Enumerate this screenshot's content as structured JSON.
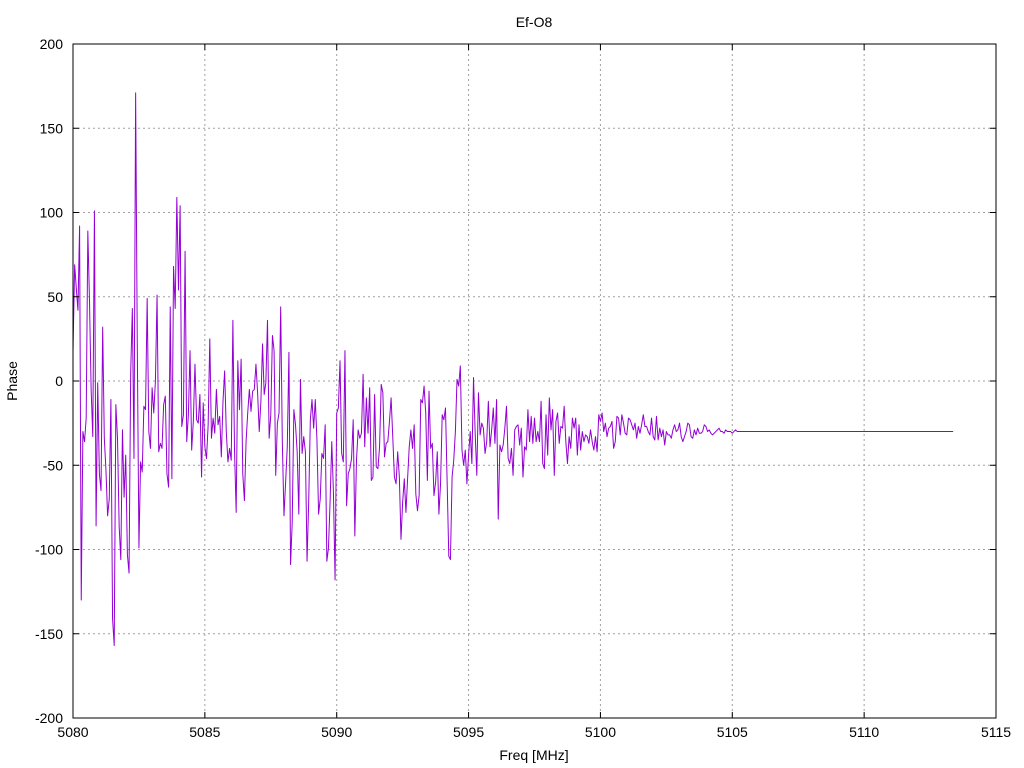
{
  "chart_data": {
    "type": "line",
    "title": "Ef-O8",
    "xlabel": "Freq [MHz]",
    "ylabel": "Phase",
    "xlim": [
      5080,
      5115
    ],
    "ylim": [
      -200,
      200
    ],
    "xticks": [
      5080,
      5085,
      5090,
      5095,
      5100,
      5105,
      5110,
      5115
    ],
    "yticks": [
      -200,
      -150,
      -100,
      -50,
      0,
      50,
      100,
      150,
      200
    ],
    "grid": true,
    "legend": "none",
    "series": [
      {
        "color": "#9400d3",
        "x_start": 5080.0,
        "x_end": 5112.0,
        "x_step": 0.0625,
        "values": [
          17,
          69,
          55,
          42,
          92,
          -130,
          -30,
          -36,
          -22,
          89,
          48,
          -5,
          -33,
          101,
          -86,
          -1,
          -55,
          -65,
          32,
          -34,
          -53,
          -80,
          -70,
          -11,
          -141,
          -157,
          -14,
          -34,
          -86,
          -106,
          -29,
          -69,
          -44,
          -103,
          -114,
          5,
          43,
          -46,
          171,
          22,
          -99,
          -48,
          -54,
          -15,
          -17,
          49,
          -30,
          -40,
          -4,
          -19,
          0,
          51,
          -42,
          -37,
          -40,
          -14,
          -9,
          -55,
          -63,
          44,
          -58,
          68,
          43,
          109,
          54,
          104,
          -27,
          -20,
          77,
          -36,
          -20,
          18,
          -41,
          -24,
          10,
          -23,
          -25,
          -8,
          -57,
          -13,
          -39,
          -46,
          -26,
          25,
          -34,
          -22,
          -31,
          -5,
          -26,
          -21,
          -45,
          -12,
          6,
          -30,
          -48,
          -40,
          -47,
          36,
          -41,
          -78,
          12,
          -17,
          13,
          -55,
          -71,
          -36,
          -19,
          -5,
          -18,
          -6,
          -5,
          10,
          -7,
          -30,
          -12,
          22,
          -8,
          -1,
          36,
          -34,
          -20,
          27,
          18,
          -56,
          -25,
          -19,
          44,
          -36,
          -80,
          -60,
          -39,
          17,
          -109,
          -84,
          -17,
          -26,
          -42,
          -79,
          1,
          -43,
          -33,
          -42,
          -107,
          -72,
          -23,
          -11,
          -28,
          -11,
          -35,
          -79,
          -70,
          -43,
          -46,
          -26,
          -107,
          -99,
          -71,
          -36,
          -66,
          -118,
          -19,
          -16,
          12,
          -43,
          -48,
          18,
          -74,
          -55,
          -52,
          -46,
          -23,
          -92,
          -47,
          -29,
          -34,
          -31,
          4,
          -39,
          -10,
          -31,
          -4,
          -59,
          -57,
          -8,
          -51,
          -52,
          -39,
          -2,
          -7,
          -45,
          -37,
          -36,
          -24,
          -10,
          -33,
          -57,
          -61,
          -42,
          -57,
          -94,
          -72,
          -58,
          -78,
          -58,
          -39,
          -29,
          -40,
          -26,
          -67,
          -77,
          -68,
          -11,
          -13,
          -3,
          -19,
          -59,
          -6,
          -40,
          -37,
          -68,
          -60,
          -42,
          -79,
          -61,
          -20,
          -23,
          -16,
          -60,
          -104,
          -106,
          -57,
          -47,
          -30,
          1,
          -3,
          9,
          -41,
          -50,
          -41,
          -61,
          -44,
          -30,
          -49,
          2,
          -31,
          -56,
          -7,
          -32,
          -25,
          -28,
          -43,
          -36,
          -12,
          -39,
          -29,
          -16,
          -37,
          -11,
          -82,
          -38,
          -42,
          -38,
          -28,
          -15,
          -46,
          -49,
          -40,
          -56,
          -29,
          -27,
          -26,
          -38,
          -28,
          -57,
          -39,
          -41,
          -17,
          -36,
          -21,
          -37,
          -22,
          -36,
          -30,
          -36,
          -12,
          -49,
          -52,
          -20,
          -44,
          -10,
          -29,
          -17,
          -56,
          -24,
          -19,
          -37,
          -27,
          -28,
          -15,
          -36,
          -49,
          -33,
          -40,
          -22,
          -28,
          -22,
          -44,
          -26,
          -41,
          -30,
          -36,
          -32,
          -33,
          -37,
          -29,
          -36,
          -41,
          -33,
          -42,
          -20,
          -24,
          -19,
          -30,
          -25,
          -33,
          -28,
          -27,
          -24,
          -40,
          -36,
          -21,
          -22,
          -32,
          -20,
          -25,
          -31,
          -32,
          -22,
          -23,
          -26,
          -29,
          -25,
          -34,
          -27,
          -31,
          -26,
          -20,
          -27,
          -27,
          -30,
          -32,
          -22,
          -33,
          -35,
          -21,
          -35,
          -28,
          -33,
          -29,
          -38,
          -30,
          -32,
          -32,
          -34,
          -29,
          -26,
          -30,
          -29,
          -25,
          -33,
          -36,
          -33,
          -30,
          -25,
          -26,
          -33,
          -34,
          -29,
          -32,
          -28,
          -31,
          -31,
          -30,
          -26,
          -27,
          -30,
          -29,
          -31,
          -32,
          -31,
          -30,
          -29,
          -28,
          -30,
          -30,
          -31,
          -29,
          -30,
          -30,
          -30,
          -31,
          -30,
          -29,
          -30,
          -30,
          -30,
          -30,
          -30,
          -30,
          -30,
          -30,
          -30,
          -30,
          -30,
          -30,
          -30,
          -30,
          -30,
          -30,
          -30,
          -30,
          -30,
          -30,
          -30,
          -30,
          -30,
          -30,
          -30,
          -30,
          -30,
          -30,
          -30,
          -30,
          -30,
          -30,
          -30,
          -30,
          -30,
          -30,
          -30,
          -30,
          -30,
          -30,
          -30,
          -30,
          -30,
          -30,
          -30,
          -30,
          -30,
          -30,
          -30,
          -30,
          -30,
          -30,
          -30,
          -30,
          -30,
          -30,
          -30,
          -30,
          -30,
          -30,
          -30,
          -30,
          -30,
          -30,
          -30,
          -30,
          -30,
          -30,
          -30,
          -30,
          -30,
          -30,
          -30,
          -30,
          -30,
          -30,
          -30,
          -30,
          -30,
          -30,
          -30,
          -30,
          -30,
          -30,
          -30,
          -30,
          -30,
          -30,
          -30,
          -30,
          -30,
          -30,
          -30,
          -30,
          -30,
          -30,
          -30,
          -30,
          -30,
          -30,
          -30,
          -30,
          -30,
          -30,
          -30,
          -30,
          -30,
          -30,
          -30,
          -30,
          -30,
          -30,
          -30,
          -30,
          -30,
          -30,
          -30,
          -30,
          -30,
          -30,
          -30,
          -30,
          -30,
          -30,
          -30,
          -30,
          -30,
          -30,
          -30,
          -30,
          -30,
          -30
        ]
      }
    ]
  }
}
